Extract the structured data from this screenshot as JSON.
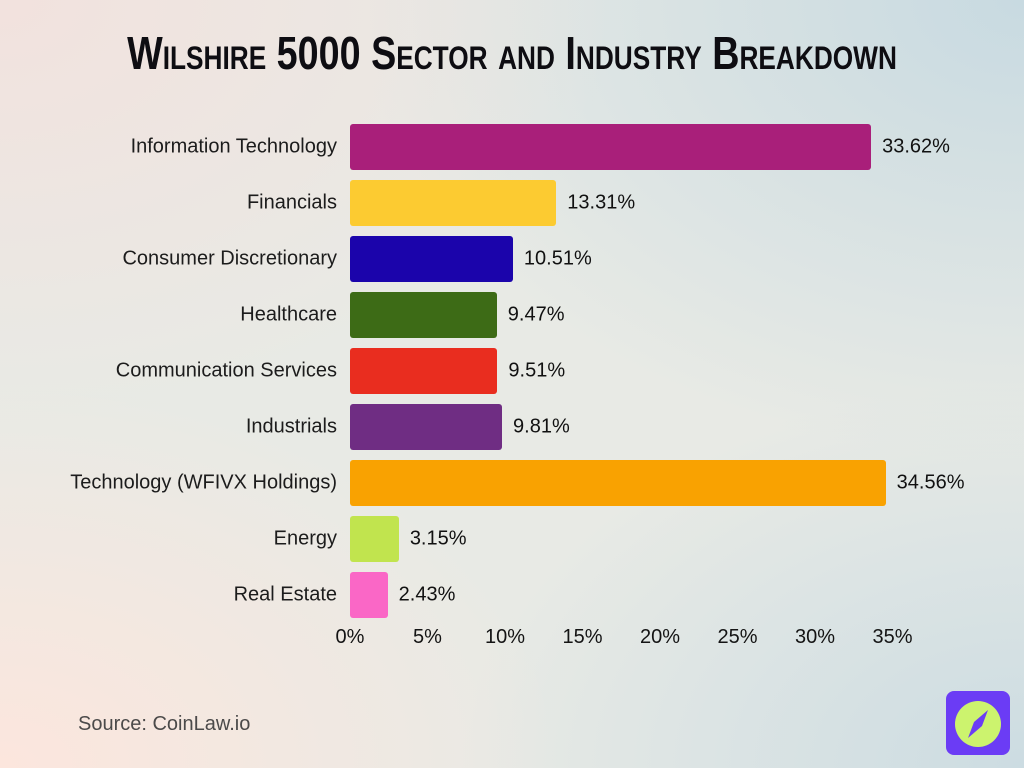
{
  "title": "Wilshire 5000 Sector and Industry Breakdown",
  "source": "Source: CoinLaw.io",
  "logo": {
    "icon": "compass-icon",
    "bg_color": "#6b3cf5",
    "circle_color": "#ccf36e",
    "needle_color": "#6b3cf5"
  },
  "chart_data": {
    "type": "bar",
    "orientation": "horizontal",
    "title": "Wilshire 5000 Sector and Industry Breakdown",
    "categories": [
      "Information Technology",
      "Financials",
      "Consumer Discretionary",
      "Healthcare",
      "Communication Services",
      "Industrials",
      "Technology (WFIVX Holdings)",
      "Energy",
      "Real Estate"
    ],
    "values": [
      33.62,
      13.31,
      10.51,
      9.47,
      9.51,
      9.81,
      34.56,
      3.15,
      2.43
    ],
    "value_labels": [
      "33.62%",
      "13.31%",
      "10.51%",
      "9.47%",
      "9.51%",
      "9.81%",
      "34.56%",
      "3.15%",
      "2.43%"
    ],
    "bar_colors": [
      "#a91f7a",
      "#fccb31",
      "#1b04ab",
      "#3d6b16",
      "#e92d1f",
      "#6f2d83",
      "#f9a201",
      "#c1e44e",
      "#fa67c6"
    ],
    "xlabel": "",
    "ylabel": "",
    "xlim": [
      0,
      35
    ],
    "x_tick_values": [
      0,
      5,
      10,
      15,
      20,
      25,
      30,
      35
    ],
    "x_tick_labels": [
      "0%",
      "5%",
      "10%",
      "15%",
      "20%",
      "25%",
      "30%",
      "35%"
    ],
    "grid": false,
    "legend": "none",
    "value_label_position": "right-of-bar"
  }
}
